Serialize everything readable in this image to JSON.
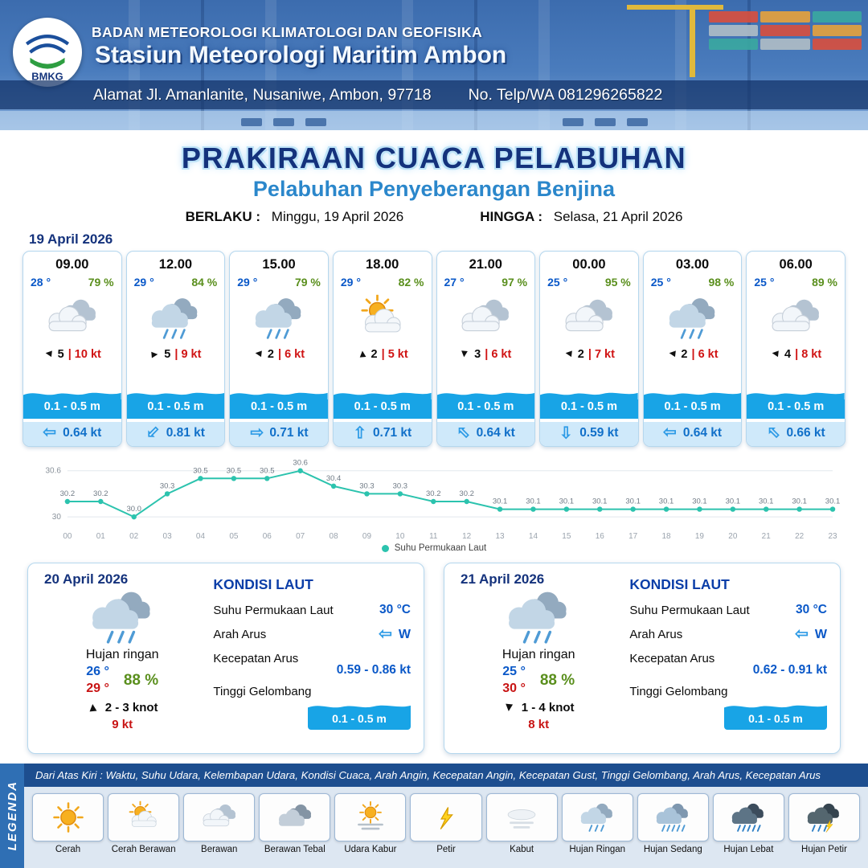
{
  "header": {
    "agency": "BADAN METEOROLOGI KLIMATOLOGI DAN GEOFISIKA",
    "station": "Stasiun Meteorologi Maritim Ambon",
    "address": "Alamat Jl. Amanlanite, Nusaniwe, Ambon, 97718",
    "phone": "No. Telp/WA  081296265822",
    "logo_text": "BMKG"
  },
  "title": {
    "main": "PRAKIRAAN CUACA PELABUHAN",
    "subtitle": "Pelabuhan Penyeberangan Benjina",
    "valid_from_label": "BERLAKU :",
    "valid_from": "Minggu, 19 April 2026",
    "valid_to_label": "HINGGA :",
    "valid_to": "Selasa, 21 April 2026"
  },
  "hourly_date": "19 April 2026",
  "hourly": [
    {
      "time": "09.00",
      "temp": "28 °",
      "rh": "79 %",
      "icon": "#i-berawan",
      "icon_name": "berawan",
      "wind_dir": "left",
      "wind_speed": "5",
      "gust": "10 kt",
      "wave": "0.1 - 0.5 m",
      "cur_dir": "left",
      "cur": "0.64 kt"
    },
    {
      "time": "12.00",
      "temp": "29 °",
      "rh": "84 %",
      "icon": "#i-hujan-ringan",
      "icon_name": "hujan-ringan",
      "wind_dir": "right",
      "wind_speed": "5",
      "gust": "9 kt",
      "wave": "0.1 - 0.5 m",
      "cur_dir": "downleft",
      "cur": "0.81 kt"
    },
    {
      "time": "15.00",
      "temp": "29 °",
      "rh": "79 %",
      "icon": "#i-hujan-ringan",
      "icon_name": "hujan-ringan",
      "wind_dir": "left",
      "wind_speed": "2",
      "gust": "6 kt",
      "wave": "0.1 - 0.5 m",
      "cur_dir": "right",
      "cur": "0.71 kt"
    },
    {
      "time": "18.00",
      "temp": "29 °",
      "rh": "82 %",
      "icon": "#i-cerah-berawan",
      "icon_name": "cerah-berawan",
      "wind_dir": "up",
      "wind_speed": "2",
      "gust": "5 kt",
      "wave": "0.1 - 0.5 m",
      "cur_dir": "up",
      "cur": "0.71 kt"
    },
    {
      "time": "21.00",
      "temp": "27 °",
      "rh": "97 %",
      "icon": "#i-berawan",
      "icon_name": "berawan",
      "wind_dir": "down",
      "wind_speed": "3",
      "gust": "6 kt",
      "wave": "0.1 - 0.5 m",
      "cur_dir": "upleft",
      "cur": "0.64 kt"
    },
    {
      "time": "00.00",
      "temp": "25 °",
      "rh": "95 %",
      "icon": "#i-berawan",
      "icon_name": "berawan",
      "wind_dir": "left",
      "wind_speed": "2",
      "gust": "7 kt",
      "wave": "0.1 - 0.5 m",
      "cur_dir": "down",
      "cur": "0.59 kt"
    },
    {
      "time": "03.00",
      "temp": "25 °",
      "rh": "98 %",
      "icon": "#i-hujan-ringan",
      "icon_name": "hujan-ringan",
      "wind_dir": "left",
      "wind_speed": "2",
      "gust": "6 kt",
      "wave": "0.1 - 0.5 m",
      "cur_dir": "left",
      "cur": "0.64 kt"
    },
    {
      "time": "06.00",
      "temp": "25 °",
      "rh": "89 %",
      "icon": "#i-berawan",
      "icon_name": "berawan",
      "wind_dir": "left",
      "wind_speed": "4",
      "gust": "8 kt",
      "wave": "0.1 - 0.5 m",
      "cur_dir": "upleft",
      "cur": "0.66 kt"
    }
  ],
  "chart_data": {
    "type": "line",
    "x": [
      "00",
      "01",
      "02",
      "03",
      "04",
      "05",
      "06",
      "07",
      "08",
      "09",
      "10",
      "11",
      "12",
      "13",
      "14",
      "15",
      "16",
      "17",
      "18",
      "19",
      "20",
      "21",
      "22",
      "23"
    ],
    "values": [
      30.2,
      30.2,
      30.0,
      30.3,
      30.5,
      30.5,
      30.5,
      30.6,
      30.4,
      30.3,
      30.3,
      30.2,
      30.2,
      30.1,
      30.1,
      30.1,
      30.1,
      30.1,
      30.1,
      30.1,
      30.1,
      30.1,
      30.1,
      30.1
    ],
    "ylim": [
      29.97,
      30.66
    ],
    "yticks": [
      30,
      30.6
    ],
    "legend": "Suhu Permukaan Laut",
    "line_color": "#2cc3ae",
    "grid": true,
    "legend_position": "bottom"
  },
  "daily": [
    {
      "date": "20 April 2026",
      "condition": "Hujan ringan",
      "icon": "#i-hujan-ringan",
      "icon_name": "hujan-ringan",
      "temp_min": "26 °",
      "temp_max": "29 °",
      "rh": "88 %",
      "wind_dir": "up",
      "wind": "2 - 3 knot",
      "gust": "9 kt",
      "sea": {
        "title": "KONDISI LAUT",
        "sst_label": "Suhu Permukaan Laut",
        "sst": "30 °C",
        "current_dir_label": "Arah Arus",
        "current_dir": "W",
        "current_arrow": "left",
        "current_speed_label": "Kecepatan Arus",
        "current_speed": "0.59 - 0.86 kt",
        "wave_label": "Tinggi Gelombang",
        "wave": "0.1 - 0.5 m"
      }
    },
    {
      "date": "21 April 2026",
      "condition": "Hujan ringan",
      "icon": "#i-hujan-ringan",
      "icon_name": "hujan-ringan",
      "temp_min": "25 °",
      "temp_max": "30 °",
      "rh": "88 %",
      "wind_dir": "down",
      "wind": "1 - 4 knot",
      "gust": "8 kt",
      "sea": {
        "title": "KONDISI LAUT",
        "sst_label": "Suhu Permukaan Laut",
        "sst": "30 °C",
        "current_dir_label": "Arah Arus",
        "current_dir": "W",
        "current_arrow": "left",
        "current_speed_label": "Kecepatan Arus",
        "current_speed": "0.62 - 0.91 kt",
        "wave_label": "Tinggi Gelombang",
        "wave": "0.1 - 0.5 m"
      }
    }
  ],
  "legend": {
    "strip": "LEGENDA",
    "description": "Dari Atas Kiri : Waktu, Suhu Udara, Kelembapan Udara, Kondisi Cuaca, Arah Angin, Kecepatan Angin, Kecepatan Gust, Tinggi Gelombang, Arah Arus, Kecepatan Arus",
    "items": [
      {
        "label": "Cerah",
        "icon": "#i-cerah"
      },
      {
        "label": "Cerah Berawan",
        "icon": "#i-cerah-berawan"
      },
      {
        "label": "Berawan",
        "icon": "#i-berawan"
      },
      {
        "label": "Berawan Tebal",
        "icon": "#i-berawan-tebal"
      },
      {
        "label": "Udara Kabur",
        "icon": "#i-udara-kabur"
      },
      {
        "label": "Petir",
        "icon": "#i-petir"
      },
      {
        "label": "Kabut",
        "icon": "#i-kabut"
      },
      {
        "label": "Hujan Ringan",
        "icon": "#i-hujan-ringan"
      },
      {
        "label": "Hujan Sedang",
        "icon": "#i-hujan-sedang"
      },
      {
        "label": "Hujan Lebat",
        "icon": "#i-hujan-lebat"
      },
      {
        "label": "Hujan Petir",
        "icon": "#i-hujan-petir"
      }
    ]
  },
  "colors": {
    "navy": "#14327c",
    "subtitle_blue": "#2b87cb",
    "temp_blue": "#0a58c8",
    "rh_green": "#5a8f1d",
    "gust_red": "#d01414",
    "wave_band": "#18a4e6",
    "current_band_bg": "#cfe9fa",
    "chart_line": "#2cc3ae",
    "legend_bar": "#1d4e8f",
    "legend_strip": "#2f6fb4"
  }
}
